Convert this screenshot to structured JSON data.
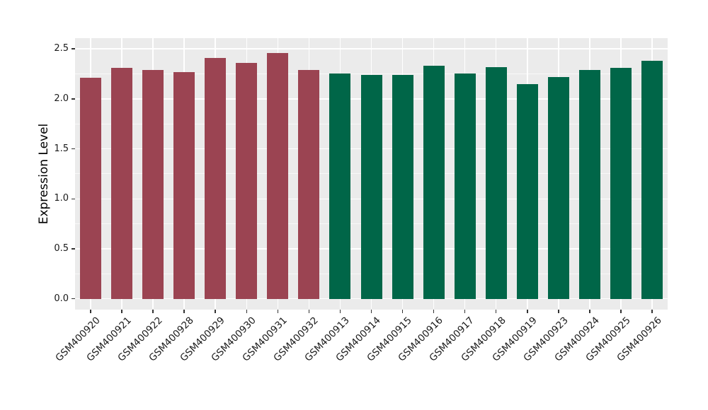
{
  "chart_data": {
    "type": "bar",
    "title": "",
    "xlabel": "",
    "ylabel": "Expression Level",
    "legend_position": "none",
    "grid": true,
    "panel_bg": "#EBEBEB",
    "grid_color": "#FFFFFF",
    "tick_color": "#333333",
    "ylim": [
      0,
      2.5
    ],
    "yticks": [
      0.0,
      0.5,
      1.0,
      1.5,
      2.0,
      2.5
    ],
    "ytick_labels": [
      "0.0",
      "0.5",
      "1.0",
      "1.5",
      "2.0",
      "2.5"
    ],
    "categories": [
      "GSM400920",
      "GSM400921",
      "GSM400922",
      "GSM400928",
      "GSM400929",
      "GSM400930",
      "GSM400931",
      "GSM400932",
      "GSM400913",
      "GSM400914",
      "GSM400915",
      "GSM400916",
      "GSM400917",
      "GSM400918",
      "GSM400919",
      "GSM400923",
      "GSM400924",
      "GSM400925",
      "GSM400926"
    ],
    "values": [
      2.21,
      2.31,
      2.29,
      2.27,
      2.41,
      2.36,
      2.46,
      2.29,
      2.25,
      2.24,
      2.24,
      2.33,
      2.25,
      2.32,
      2.15,
      2.22,
      2.29,
      2.31,
      2.38
    ],
    "bar_groups": [
      {
        "color": "#9B4452",
        "from": 0,
        "to": 7
      },
      {
        "color": "#006648",
        "from": 8,
        "to": 18
      }
    ]
  }
}
